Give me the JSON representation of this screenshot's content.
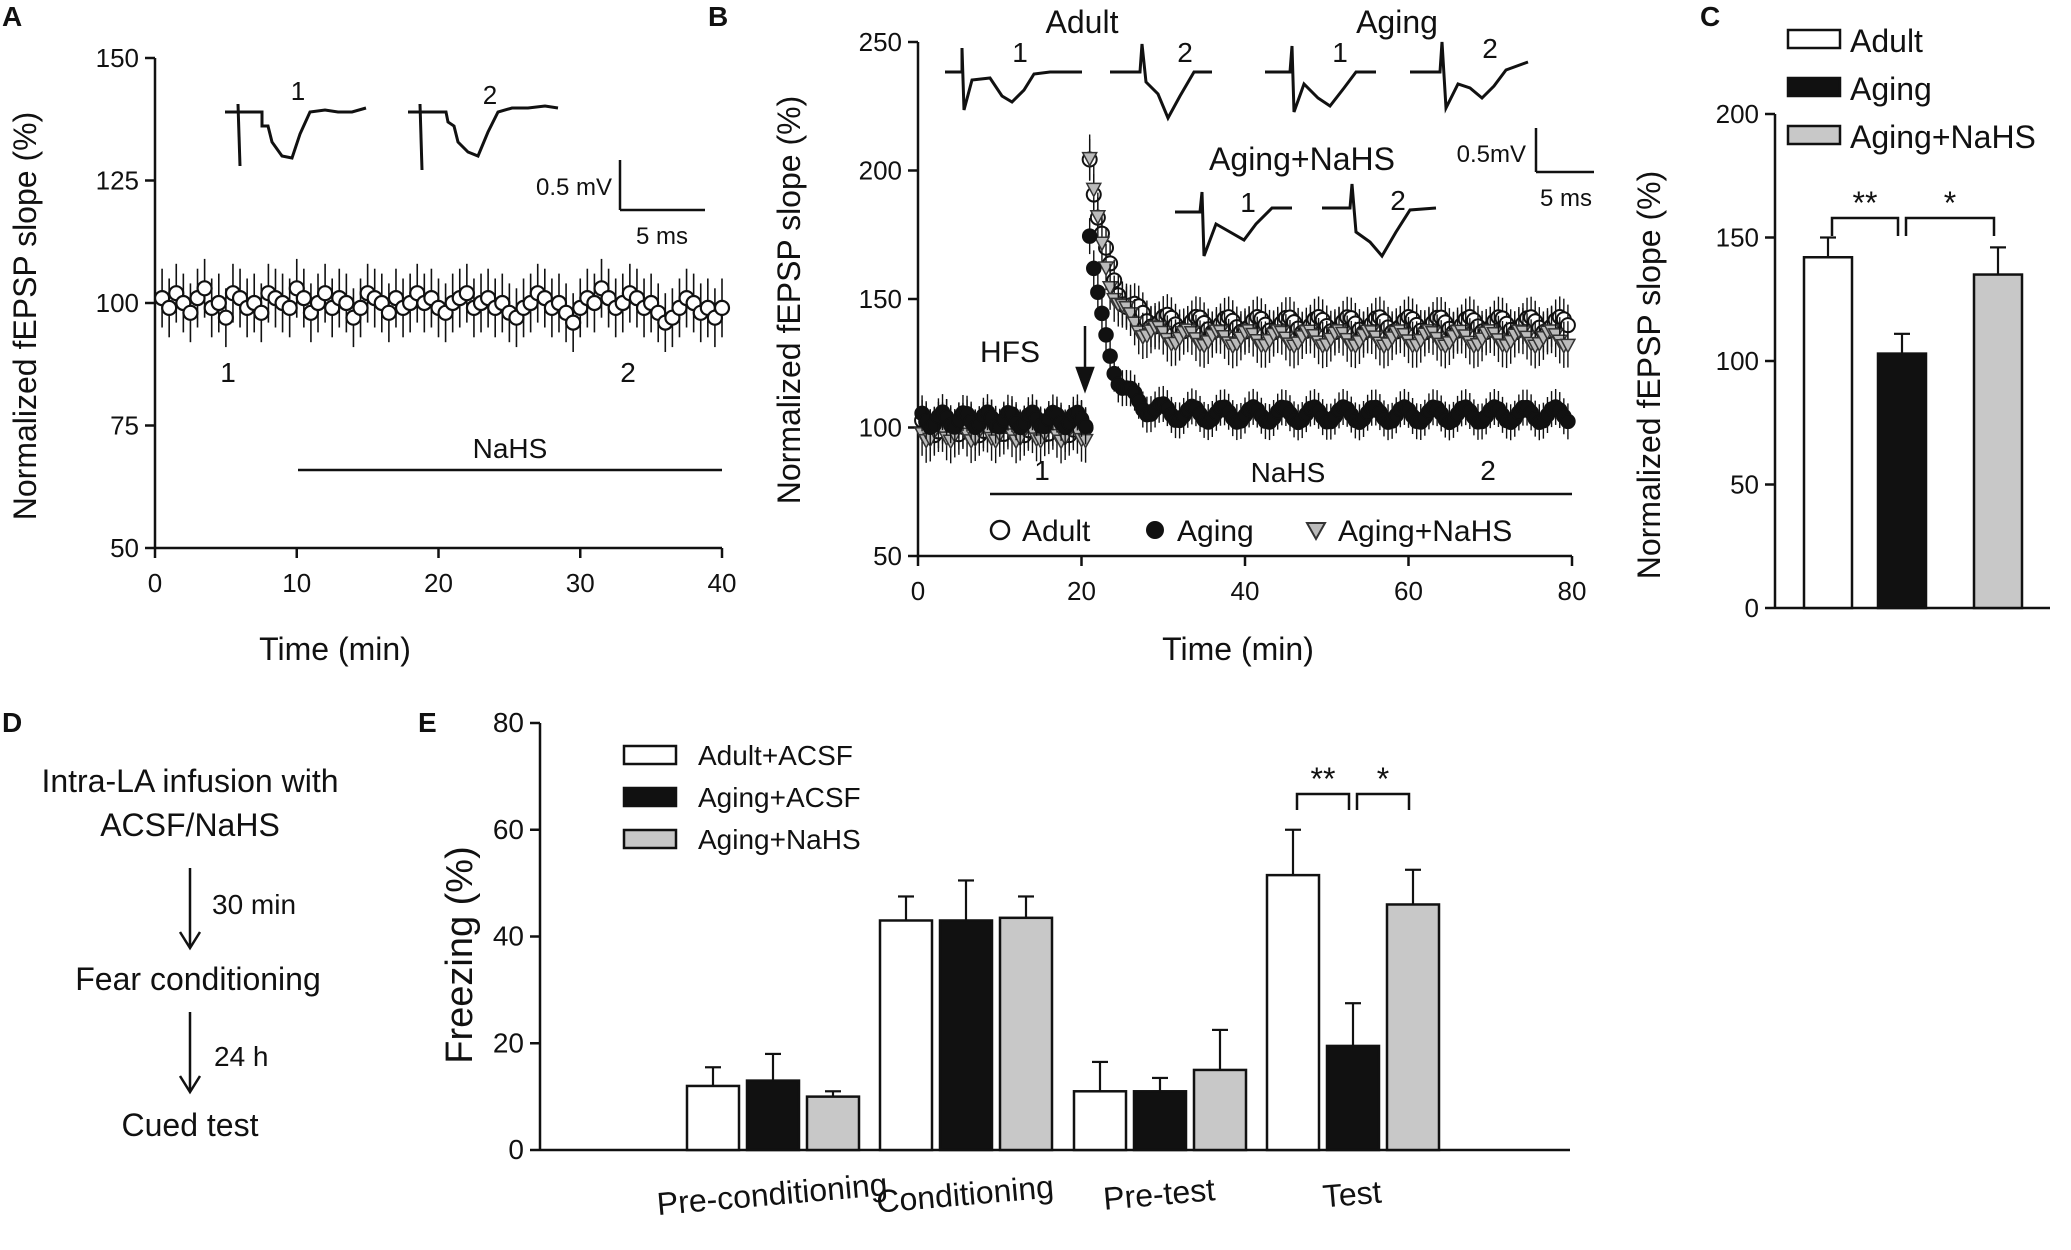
{
  "panels": {
    "A": "A",
    "B": "B",
    "C": "C",
    "D": "D",
    "E": "E"
  },
  "chart_data": [
    {
      "id": "A",
      "type": "scatter",
      "title": "",
      "xlabel": "Time (min)",
      "ylabel": "Normalized fEPSP slope (%)",
      "xlim": [
        0,
        40
      ],
      "ylim": [
        50,
        150
      ],
      "xticks": [
        0,
        10,
        20,
        30,
        40
      ],
      "yticks": [
        50,
        75,
        100,
        125,
        150
      ],
      "series": [
        {
          "name": "Recording",
          "marker": "open-circle",
          "x_start": 0.5,
          "x_step": 0.5,
          "sem": 6,
          "values": [
            101,
            99,
            102,
            100,
            98,
            101,
            103,
            99,
            100,
            97,
            102,
            101,
            99,
            100,
            98,
            102,
            101,
            100,
            99,
            103,
            101,
            98,
            100,
            102,
            99,
            101,
            100,
            97,
            99,
            102,
            101,
            100,
            98,
            101,
            99,
            100,
            102,
            100,
            101,
            99,
            98,
            100,
            101,
            102,
            99,
            100,
            101,
            99,
            100,
            98,
            97,
            99,
            100,
            102,
            101,
            99,
            100,
            98,
            96,
            99,
            101,
            100,
            103,
            101,
            99,
            100,
            102,
            101,
            99,
            100,
            98,
            96,
            97,
            99,
            101,
            100,
            98,
            99,
            97,
            99
          ]
        }
      ],
      "annotations": {
        "sample_1": "1",
        "sample_2": "2",
        "trace_1": "1",
        "trace_2": "2",
        "drug_bar": "NaHS",
        "scale_mv": "0.5 mV",
        "scale_ms": "5 ms"
      }
    },
    {
      "id": "B",
      "type": "scatter",
      "title": "",
      "xlabel": "Time (min)",
      "ylabel": "Normalized fEPSP slope (%)",
      "xlim": [
        0,
        80
      ],
      "ylim": [
        50,
        250
      ],
      "xticks": [
        0,
        20,
        40,
        60,
        80
      ],
      "yticks": [
        50,
        100,
        150,
        200,
        250
      ],
      "series": [
        {
          "name": "Adult",
          "marker": "open-circle",
          "baseline": 100,
          "peak": 207,
          "plateau": 140,
          "sem": 8
        },
        {
          "name": "Aging",
          "marker": "filled-circle",
          "baseline": 103,
          "peak": 177,
          "plateau": 105,
          "sem": 7
        },
        {
          "name": "Aging+NaHS",
          "marker": "open-triangle",
          "baseline": 98,
          "peak": 205,
          "plateau": 135,
          "sem": 9
        }
      ],
      "stimulus_time": 21,
      "annotations": {
        "hfs": "HFS",
        "sample_1": "1",
        "sample_2": "2",
        "drug_bar": "NaHS",
        "adult": "Adult",
        "aging": "Aging",
        "aging_nahs": "Aging+NaHS",
        "t_adult_1": "1",
        "t_adult_2": "2",
        "t_aging_1": "1",
        "t_aging_2": "2",
        "t_nahs_1": "1",
        "t_nahs_2": "2",
        "scale_mv": "0.5mV",
        "scale_ms": "5 ms"
      },
      "legend": [
        "Adult",
        "Aging",
        "Aging+NaHS"
      ]
    },
    {
      "id": "C",
      "type": "bar",
      "title": "",
      "xlabel": "",
      "ylabel": "Normalized fEPSP slope (%)",
      "ylim": [
        0,
        200
      ],
      "yticks": [
        0,
        50,
        100,
        150,
        200
      ],
      "categories": [
        "Adult",
        "Aging",
        "Aging+NaHS"
      ],
      "values": [
        142,
        103,
        135
      ],
      "errors": [
        8,
        8,
        11
      ],
      "colors": [
        "#ffffff",
        "#111111",
        "#c8c8c8"
      ],
      "significance": [
        {
          "between": [
            0,
            1
          ],
          "label": "**"
        },
        {
          "between": [
            1,
            2
          ],
          "label": "*"
        }
      ],
      "legend": [
        "Adult",
        "Aging",
        "Aging+NaHS"
      ]
    },
    {
      "id": "E",
      "type": "bar",
      "title": "",
      "xlabel": "",
      "ylabel": "Freezing (%)",
      "ylim": [
        0,
        80
      ],
      "yticks": [
        0,
        20,
        40,
        60,
        80
      ],
      "categories": [
        "Pre-conditioning",
        "Conditioning",
        "Pre-test",
        "Test"
      ],
      "series": [
        {
          "name": "Adult+ACSF",
          "color": "#ffffff",
          "values": [
            12,
            43,
            11,
            51.5
          ],
          "errors": [
            3.5,
            4.5,
            5.5,
            8.5
          ]
        },
        {
          "name": "Aging+ACSF",
          "color": "#111111",
          "values": [
            13,
            43,
            11,
            19.5
          ],
          "errors": [
            5,
            7.5,
            2.5,
            8
          ]
        },
        {
          "name": "Aging+NaHS",
          "color": "#c8c8c8",
          "values": [
            10,
            43.5,
            15,
            46
          ],
          "errors": [
            1,
            4,
            7.5,
            6.5
          ]
        }
      ],
      "significance": [
        {
          "category": 3,
          "between": [
            0,
            1
          ],
          "label": "**"
        },
        {
          "category": 3,
          "between": [
            1,
            2
          ],
          "label": "*"
        }
      ],
      "legend": [
        "Adult+ACSF",
        "Aging+ACSF",
        "Aging+NaHS"
      ]
    }
  ],
  "flowchart": {
    "step1_line1": "Intra-LA infusion with",
    "step1_line2": "ACSF/NaHS",
    "interval1": "30 min",
    "step2": "Fear conditioning",
    "interval2": "24 h",
    "step3": "Cued test"
  }
}
